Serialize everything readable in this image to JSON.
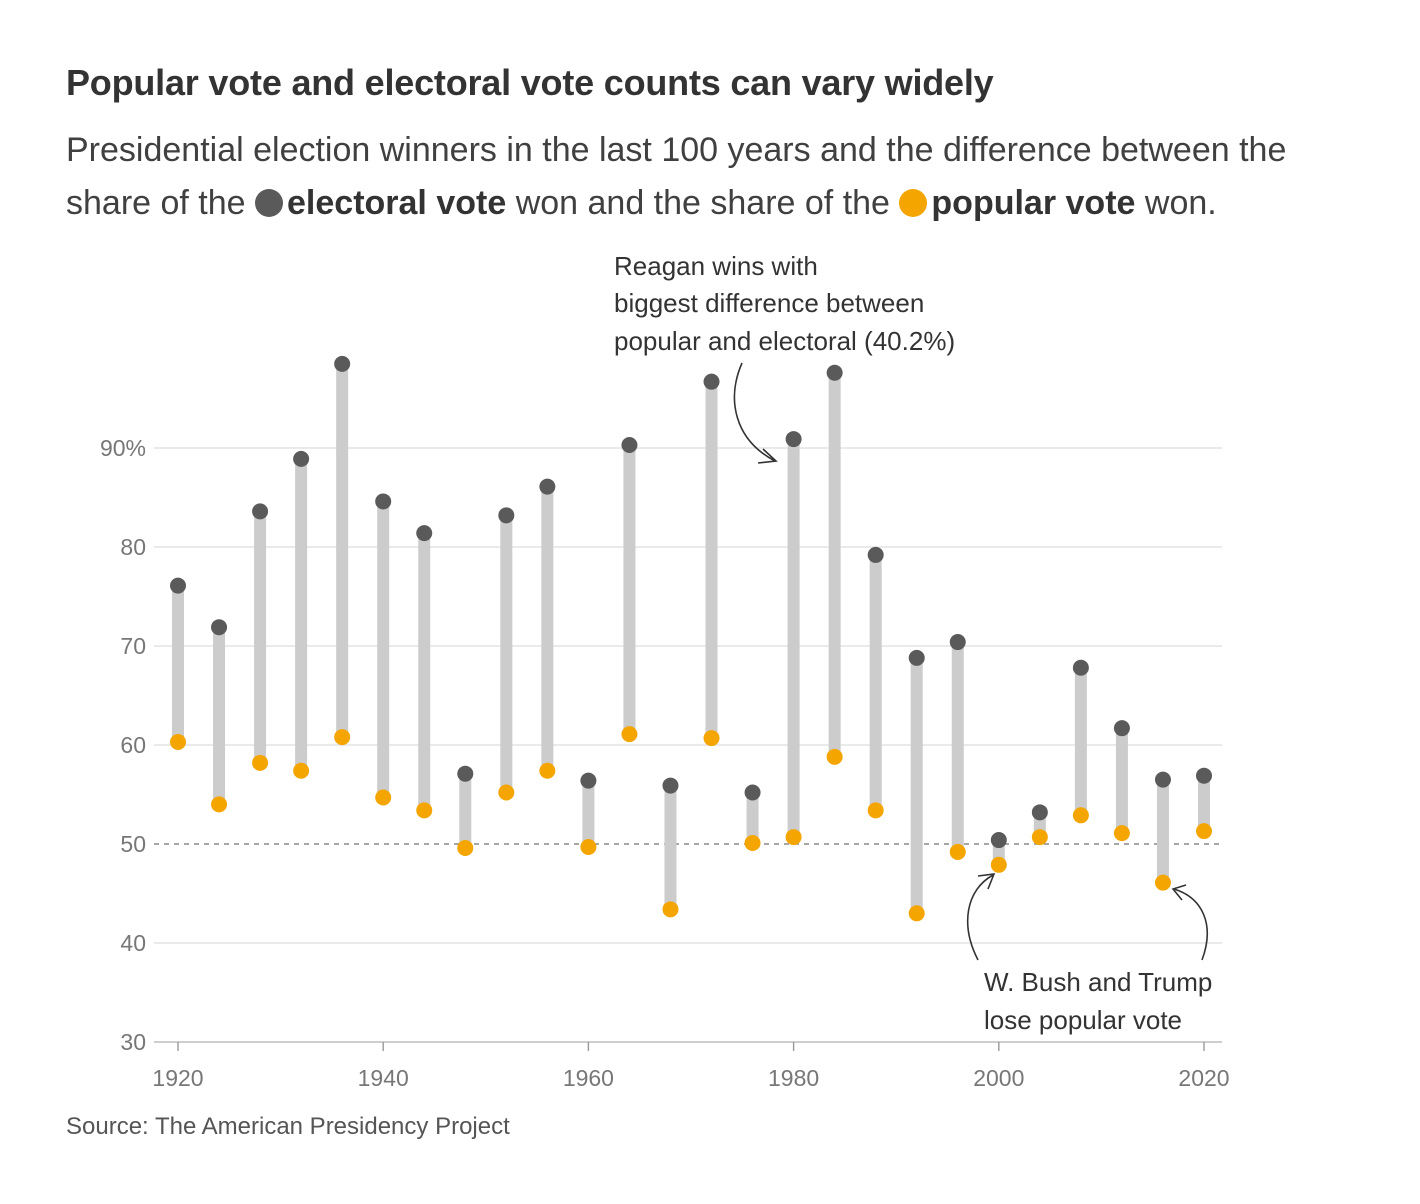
{
  "title": "Popular vote and electoral vote counts can vary widely",
  "subtitle": {
    "part1": "Presidential election winners in the last 100 years and the difference between the share of the",
    "electoral_label": "electoral vote",
    "part2": "won and the share of the",
    "popular_label": "popular vote",
    "part3": "won."
  },
  "colors": {
    "electoral": "#5a5a5a",
    "popular": "#f4a500",
    "range": "#cccccc",
    "grid": "#e3e3e3",
    "reference": "#888888"
  },
  "source": "Source: The American Presidency Project",
  "annotations": {
    "reagan": [
      "Reagan wins with",
      "biggest difference between",
      "popular and electoral (40.2%)"
    ],
    "bush_trump": [
      "W. Bush and Trump",
      "lose popular vote"
    ]
  },
  "chart_data": {
    "type": "dumbbell",
    "title": "Popular vote and electoral vote counts can vary widely",
    "xlabel": "",
    "ylabel": "",
    "ylim": [
      30,
      100
    ],
    "xlim": [
      1920,
      2020
    ],
    "y_ticks": [
      30,
      40,
      50,
      60,
      70,
      80,
      90
    ],
    "y_tick_labels": [
      "30",
      "40",
      "50",
      "60",
      "70",
      "80",
      "90%"
    ],
    "x_ticks": [
      1920,
      1940,
      1960,
      1980,
      2000,
      2020
    ],
    "x_tick_labels": [
      "1920",
      "1940",
      "1960",
      "1980",
      "2000",
      "2020"
    ],
    "reference_line": 50,
    "years": [
      1920,
      1924,
      1928,
      1932,
      1936,
      1940,
      1944,
      1948,
      1952,
      1956,
      1960,
      1964,
      1968,
      1972,
      1976,
      1980,
      1984,
      1988,
      1992,
      1996,
      2000,
      2004,
      2008,
      2012,
      2016,
      2020
    ],
    "series": [
      {
        "name": "electoral vote",
        "values": [
          76.1,
          71.9,
          83.6,
          88.9,
          98.5,
          84.6,
          81.4,
          57.1,
          83.2,
          86.1,
          56.4,
          90.3,
          55.9,
          96.7,
          55.2,
          90.9,
          97.6,
          79.2,
          68.8,
          70.4,
          50.4,
          53.2,
          67.8,
          61.7,
          56.5,
          56.9
        ]
      },
      {
        "name": "popular vote",
        "values": [
          60.3,
          54.0,
          58.2,
          57.4,
          60.8,
          54.7,
          53.4,
          49.6,
          55.2,
          57.4,
          49.7,
          61.1,
          43.4,
          60.7,
          50.1,
          50.7,
          58.8,
          53.4,
          43.0,
          49.2,
          47.9,
          50.7,
          52.9,
          51.1,
          46.1,
          51.3
        ]
      }
    ]
  }
}
